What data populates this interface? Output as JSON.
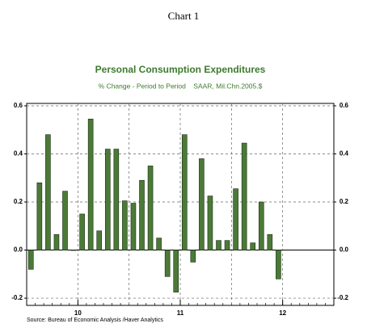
{
  "page_title": "Chart 1",
  "chart_data": {
    "type": "bar",
    "title": "Personal Consumption Expenditures",
    "subtitle": "% Change - Period to Period    SAAR, Mil.Chn.2005.$",
    "source": "Source: Bureau of Economic Analysis /Haver Analytics",
    "categories": [
      null,
      null,
      null,
      null,
      null,
      null,
      "10",
      null,
      null,
      null,
      null,
      null,
      null,
      null,
      null,
      null,
      null,
      null,
      "11",
      null,
      null,
      null,
      null,
      null,
      null,
      null,
      null,
      null,
      null,
      null,
      "12",
      null,
      null,
      null,
      null,
      null
    ],
    "values": [
      -0.08,
      0.28,
      0.48,
      0.065,
      0.245,
      0,
      0.15,
      0.545,
      0.08,
      0.42,
      0.42,
      0.205,
      0.195,
      0.29,
      0.35,
      0.05,
      -0.11,
      -0.175,
      0.48,
      -0.05,
      0.38,
      0.225,
      0.04,
      0.04,
      0.255,
      0.445,
      0.03,
      0.2,
      0.065,
      -0.12,
      null,
      null,
      null,
      null,
      null,
      null
    ],
    "color": "#4b7a37",
    "ylim": [
      -0.23,
      0.61
    ],
    "yticks": [
      -0.2,
      {
        "value": 0,
        "label": "0.0"
      },
      0.2,
      0.4,
      0.6
    ],
    "grid": true
  }
}
